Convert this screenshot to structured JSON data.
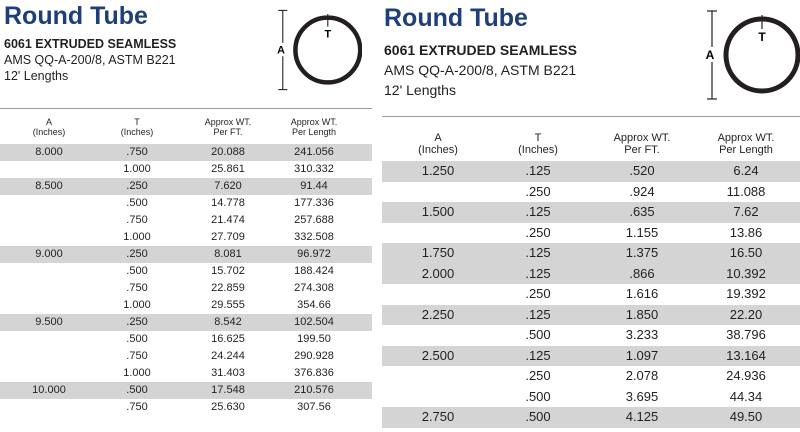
{
  "left": {
    "title": "Round Tube",
    "subtitle": "6061 EXTRUDED SEAMLESS",
    "spec": "AMS QQ-A-200/8, ASTM B221",
    "lengths": "12' Lengths",
    "diagram": {
      "dim_a": "A",
      "dim_t": "T"
    },
    "headers": {
      "a": [
        "A",
        "(Inches)"
      ],
      "t": [
        "T",
        "(Inches)"
      ],
      "wt_ft": [
        "Approx WT.",
        "Per FT."
      ],
      "wt_len": [
        "Approx WT.",
        "Per Length"
      ]
    },
    "rows": [
      {
        "a": "8.000",
        "t": ".750",
        "wt_ft": "20.088",
        "wt_len": "241.056",
        "shaded": true
      },
      {
        "a": "",
        "t": "1.000",
        "wt_ft": "25.861",
        "wt_len": "310.332",
        "shaded": false
      },
      {
        "a": "8.500",
        "t": ".250",
        "wt_ft": "7.620",
        "wt_len": "91.44",
        "shaded": true
      },
      {
        "a": "",
        "t": ".500",
        "wt_ft": "14.778",
        "wt_len": "177.336",
        "shaded": false
      },
      {
        "a": "",
        "t": ".750",
        "wt_ft": "21.474",
        "wt_len": "257.688",
        "shaded": false
      },
      {
        "a": "",
        "t": "1.000",
        "wt_ft": "27.709",
        "wt_len": "332.508",
        "shaded": false
      },
      {
        "a": "9.000",
        "t": ".250",
        "wt_ft": "8.081",
        "wt_len": "96.972",
        "shaded": true
      },
      {
        "a": "",
        "t": ".500",
        "wt_ft": "15.702",
        "wt_len": "188.424",
        "shaded": false
      },
      {
        "a": "",
        "t": ".750",
        "wt_ft": "22.859",
        "wt_len": "274.308",
        "shaded": false
      },
      {
        "a": "",
        "t": "1.000",
        "wt_ft": "29.555",
        "wt_len": "354.66",
        "shaded": false
      },
      {
        "a": "9.500",
        "t": ".250",
        "wt_ft": "8.542",
        "wt_len": "102.504",
        "shaded": true
      },
      {
        "a": "",
        "t": ".500",
        "wt_ft": "16.625",
        "wt_len": "199.50",
        "shaded": false
      },
      {
        "a": "",
        "t": ".750",
        "wt_ft": "24.244",
        "wt_len": "290.928",
        "shaded": false
      },
      {
        "a": "",
        "t": "1.000",
        "wt_ft": "31.403",
        "wt_len": "376.836",
        "shaded": false
      },
      {
        "a": "10.000",
        "t": ".500",
        "wt_ft": "17.548",
        "wt_len": "210.576",
        "shaded": true
      },
      {
        "a": "",
        "t": ".750",
        "wt_ft": "25.630",
        "wt_len": "307.56",
        "shaded": false
      }
    ]
  },
  "right": {
    "title": "Round Tube",
    "subtitle": "6061 EXTRUDED SEAMLESS",
    "spec": "AMS QQ-A-200/8, ASTM B221",
    "lengths": "12' Lengths",
    "diagram": {
      "dim_a": "A",
      "dim_t": "T"
    },
    "headers": {
      "a": [
        "A",
        "(Inches)"
      ],
      "t": [
        "T",
        "(Inches)"
      ],
      "wt_ft": [
        "Approx WT.",
        "Per FT."
      ],
      "wt_len": [
        "Approx WT.",
        "Per Length"
      ]
    },
    "rows": [
      {
        "a": "1.250",
        "t": ".125",
        "wt_ft": ".520",
        "wt_len": "6.24",
        "shaded": true
      },
      {
        "a": "",
        "t": ".250",
        "wt_ft": ".924",
        "wt_len": "11.088",
        "shaded": false
      },
      {
        "a": "1.500",
        "t": ".125",
        "wt_ft": ".635",
        "wt_len": "7.62",
        "shaded": true
      },
      {
        "a": "",
        "t": ".250",
        "wt_ft": "1.155",
        "wt_len": "13.86",
        "shaded": false
      },
      {
        "a": "1.750",
        "t": ".125",
        "wt_ft": "1.375",
        "wt_len": "16.50",
        "shaded": true
      },
      {
        "a": "2.000",
        "t": ".125",
        "wt_ft": ".866",
        "wt_len": "10.392",
        "shaded": true
      },
      {
        "a": "",
        "t": ".250",
        "wt_ft": "1.616",
        "wt_len": "19.392",
        "shaded": false
      },
      {
        "a": "2.250",
        "t": ".125",
        "wt_ft": "1.850",
        "wt_len": "22.20",
        "shaded": true
      },
      {
        "a": "",
        "t": ".500",
        "wt_ft": "3.233",
        "wt_len": "38.796",
        "shaded": false
      },
      {
        "a": "2.500",
        "t": ".125",
        "wt_ft": "1.097",
        "wt_len": "13.164",
        "shaded": true
      },
      {
        "a": "",
        "t": ".250",
        "wt_ft": "2.078",
        "wt_len": "24.936",
        "shaded": false
      },
      {
        "a": "",
        "t": ".500",
        "wt_ft": "3.695",
        "wt_len": "44.34",
        "shaded": false
      },
      {
        "a": "2.750",
        "t": ".500",
        "wt_ft": "4.125",
        "wt_len": "49.50",
        "shaded": true
      }
    ]
  }
}
